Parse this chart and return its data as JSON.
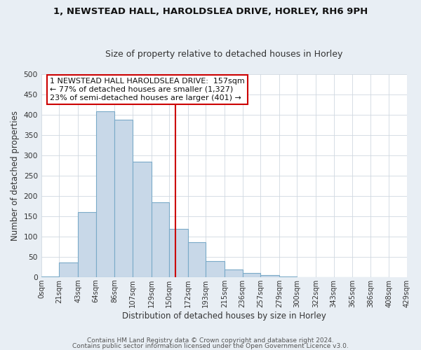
{
  "title": "1, NEWSTEAD HALL, HAROLDSLEA DRIVE, HORLEY, RH6 9PH",
  "subtitle": "Size of property relative to detached houses in Horley",
  "xlabel": "Distribution of detached houses by size in Horley",
  "ylabel": "Number of detached properties",
  "bin_edges": [
    0,
    21,
    43,
    64,
    86,
    107,
    129,
    150,
    172,
    193,
    215,
    236,
    257,
    279,
    300,
    322,
    343,
    365,
    386,
    408,
    429
  ],
  "bin_counts": [
    2,
    35,
    160,
    408,
    387,
    284,
    184,
    119,
    85,
    40,
    19,
    10,
    4,
    1,
    0,
    0,
    0,
    0,
    0
  ],
  "bar_color": "#c8d8e8",
  "bar_edge_color": "#7aaac8",
  "vline_x": 157,
  "vline_color": "#cc0000",
  "annotation_text": "1 NEWSTEAD HALL HAROLDSLEA DRIVE:  157sqm\n← 77% of detached houses are smaller (1,327)\n23% of semi-detached houses are larger (401) →",
  "annotation_box_facecolor": "#ffffff",
  "annotation_box_edgecolor": "#cc0000",
  "ylim": [
    0,
    500
  ],
  "yticks": [
    0,
    50,
    100,
    150,
    200,
    250,
    300,
    350,
    400,
    450,
    500
  ],
  "footer1": "Contains HM Land Registry data © Crown copyright and database right 2024.",
  "footer2": "Contains public sector information licensed under the Open Government Licence v3.0.",
  "fig_facecolor": "#e8eef4",
  "axes_facecolor": "#ffffff",
  "grid_color": "#d0d8e0",
  "tick_labels": [
    "0sqm",
    "21sqm",
    "43sqm",
    "64sqm",
    "86sqm",
    "107sqm",
    "129sqm",
    "150sqm",
    "172sqm",
    "193sqm",
    "215sqm",
    "236sqm",
    "257sqm",
    "279sqm",
    "300sqm",
    "322sqm",
    "343sqm",
    "365sqm",
    "386sqm",
    "408sqm",
    "429sqm"
  ],
  "title_fontsize": 9.5,
  "subtitle_fontsize": 9.0,
  "axis_label_fontsize": 8.5,
  "tick_fontsize": 7.2,
  "annotation_fontsize": 8.0,
  "footer_fontsize": 6.5
}
